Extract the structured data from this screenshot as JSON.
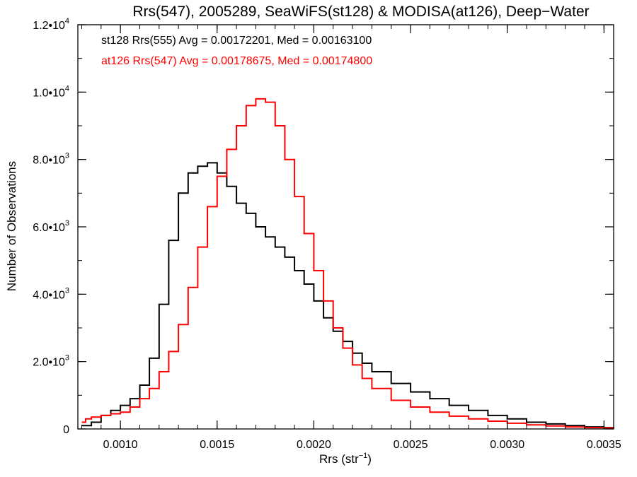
{
  "chart_data": {
    "type": "line",
    "title": "Rrs(547), 2005289, SeaWiFS(st128) & MODISA(at126), Deep−Water",
    "xlabel_main": "Rrs (str",
    "xlabel_sup": "−1",
    "xlabel_close": ")",
    "ylabel": "Number of Observations",
    "xlim": [
      0.00078,
      0.00355
    ],
    "ylim": [
      0,
      12000
    ],
    "xticks": [
      {
        "value": 0.001,
        "label": "0.0010"
      },
      {
        "value": 0.0015,
        "label": "0.0015"
      },
      {
        "value": 0.002,
        "label": "0.0020"
      },
      {
        "value": 0.0025,
        "label": "0.0025"
      },
      {
        "value": 0.003,
        "label": "0.0030"
      },
      {
        "value": 0.0035,
        "label": "0.0035"
      }
    ],
    "yticks": [
      {
        "value": 0,
        "label": "0",
        "sup": ""
      },
      {
        "value": 2000,
        "label": "2.0•10",
        "sup": "3"
      },
      {
        "value": 4000,
        "label": "4.0•10",
        "sup": "3"
      },
      {
        "value": 6000,
        "label": "6.0•10",
        "sup": "3"
      },
      {
        "value": 8000,
        "label": "8.0•10",
        "sup": "3"
      },
      {
        "value": 10000,
        "label": "1.0•10",
        "sup": "4"
      },
      {
        "value": 12000,
        "label": "1.2•10",
        "sup": "4"
      }
    ],
    "grid": false,
    "legend_position": "top-left",
    "series": [
      {
        "name": "st128 Rrs(555) Avg = 0.00172201, Med = 0.00163100",
        "color": "#000000",
        "x": [
          0.0008,
          0.00085,
          0.0009,
          0.00095,
          0.001,
          0.00105,
          0.0011,
          0.00115,
          0.0012,
          0.00125,
          0.0013,
          0.00135,
          0.0014,
          0.00145,
          0.0015,
          0.00155,
          0.0016,
          0.00165,
          0.0017,
          0.00175,
          0.0018,
          0.00185,
          0.0019,
          0.00195,
          0.002,
          0.00205,
          0.0021,
          0.00215,
          0.0022,
          0.00225,
          0.0023,
          0.0024,
          0.0025,
          0.0026,
          0.0027,
          0.0028,
          0.0029,
          0.003,
          0.0031,
          0.0032,
          0.0033,
          0.0034,
          0.0035,
          0.00355
        ],
        "y": [
          100,
          200,
          400,
          550,
          700,
          900,
          1300,
          2100,
          3700,
          5600,
          7000,
          7600,
          7800,
          7900,
          7600,
          7200,
          6700,
          6400,
          6000,
          5700,
          5400,
          5100,
          4700,
          4300,
          3800,
          3300,
          2900,
          2600,
          2250,
          1950,
          1700,
          1350,
          1100,
          900,
          700,
          550,
          400,
          300,
          200,
          150,
          100,
          60,
          40,
          30
        ]
      },
      {
        "name": "at126 Rrs(547) Avg = 0.00178675, Med = 0.00174800",
        "color": "#ff0000",
        "x": [
          0.0008,
          0.00082,
          0.00085,
          0.0009,
          0.00095,
          0.001,
          0.00105,
          0.0011,
          0.00115,
          0.0012,
          0.00125,
          0.0013,
          0.00135,
          0.0014,
          0.00145,
          0.0015,
          0.00155,
          0.0016,
          0.00165,
          0.0017,
          0.00175,
          0.0018,
          0.00185,
          0.0019,
          0.00195,
          0.002,
          0.00205,
          0.0021,
          0.00215,
          0.0022,
          0.00225,
          0.0023,
          0.0024,
          0.0025,
          0.0026,
          0.0027,
          0.0028,
          0.0029,
          0.003,
          0.0031,
          0.0032,
          0.0033,
          0.0034,
          0.0035,
          0.00355
        ],
        "y": [
          200,
          300,
          350,
          400,
          450,
          500,
          650,
          900,
          1200,
          1700,
          2300,
          3100,
          4200,
          5400,
          6600,
          7500,
          8300,
          9000,
          9600,
          9800,
          9700,
          9000,
          8000,
          6900,
          5800,
          4700,
          3800,
          3000,
          2400,
          1900,
          1500,
          1200,
          850,
          650,
          500,
          380,
          300,
          230,
          170,
          120,
          90,
          60,
          40,
          30,
          25
        ]
      }
    ]
  }
}
